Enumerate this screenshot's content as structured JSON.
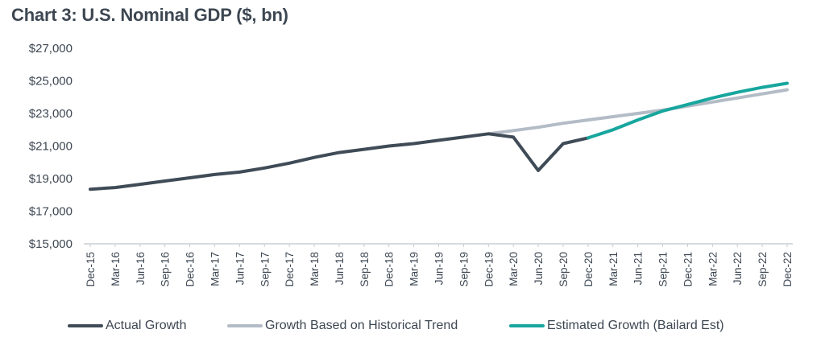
{
  "title": "Chart 3: U.S. Nominal GDP ($, bn)",
  "chart_data": {
    "type": "line",
    "title": "Chart 3: U.S. Nominal GDP ($, bn)",
    "xlabel": "",
    "ylabel": "",
    "ylim": [
      15000,
      27000
    ],
    "yticks": [
      "$15,000",
      "$17,000",
      "$19,000",
      "$21,000",
      "$23,000",
      "$25,000",
      "$27,000"
    ],
    "ytick_values": [
      15000,
      17000,
      19000,
      21000,
      23000,
      25000,
      27000
    ],
    "categories": [
      "Dec-15",
      "Mar-16",
      "Jun-16",
      "Sep-16",
      "Dec-16",
      "Mar-17",
      "Jun-17",
      "Sep-17",
      "Dec-17",
      "Mar-18",
      "Jun-18",
      "Sep-18",
      "Dec-18",
      "Mar-19",
      "Jun-19",
      "Sep-19",
      "Dec-19",
      "Mar-20",
      "Jun-20",
      "Sep-20",
      "Dec-20",
      "Mar-21",
      "Jun-21",
      "Sep-21",
      "Dec-21",
      "Mar-22",
      "Jun-22",
      "Sep-22",
      "Dec-22"
    ],
    "grid": false,
    "legend_position": "bottom",
    "series": [
      {
        "name": "Actual Growth",
        "color": "#3f4b57",
        "values": [
          18350,
          18450,
          18650,
          18850,
          19050,
          19250,
          19400,
          19650,
          19950,
          20300,
          20600,
          20800,
          21000,
          21150,
          21350,
          21550,
          21750,
          21550,
          19500,
          21150,
          21500,
          null,
          null,
          null,
          null,
          null,
          null,
          null,
          null
        ]
      },
      {
        "name": "Growth Based on Historical Trend",
        "color": "#b3bcc6",
        "values": [
          null,
          null,
          null,
          null,
          null,
          null,
          null,
          null,
          null,
          null,
          null,
          null,
          null,
          null,
          null,
          null,
          21750,
          21950,
          22150,
          22400,
          22600,
          22800,
          23000,
          23200,
          23450,
          23700,
          23950,
          24200,
          24450
        ]
      },
      {
        "name": "Estimated Growth (Bailard Est)",
        "color": "#17a69e",
        "values": [
          null,
          null,
          null,
          null,
          null,
          null,
          null,
          null,
          null,
          null,
          null,
          null,
          null,
          null,
          null,
          null,
          null,
          null,
          null,
          null,
          21500,
          22000,
          22600,
          23150,
          23550,
          23950,
          24300,
          24600,
          24850
        ]
      }
    ]
  }
}
